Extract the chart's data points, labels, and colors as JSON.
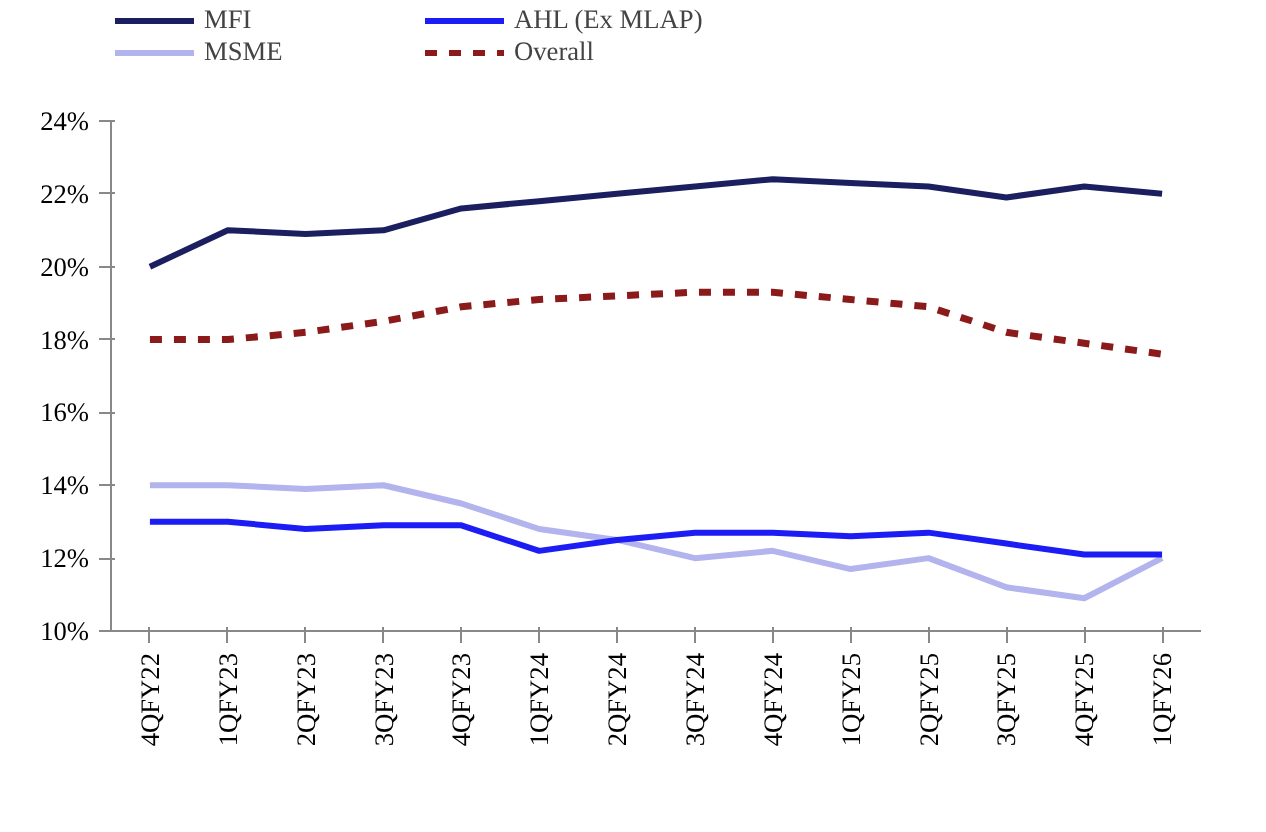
{
  "chart_data": {
    "type": "line",
    "categories": [
      "4QFY22",
      "1QFY23",
      "2QFY23",
      "3QFY23",
      "4QFY23",
      "1QFY24",
      "2QFY24",
      "3QFY24",
      "4QFY24",
      "1QFY25",
      "2QFY25",
      "3QFY25",
      "4QFY25",
      "1QFY26"
    ],
    "series": [
      {
        "name": "MFI",
        "color": "#1b1f5f",
        "line_style": "solid",
        "values": [
          20.0,
          21.0,
          20.9,
          21.0,
          21.6,
          21.8,
          22.0,
          22.2,
          22.4,
          22.3,
          22.2,
          21.9,
          22.2,
          22.0
        ]
      },
      {
        "name": "MSME",
        "color": "#b3b3ee",
        "line_style": "solid",
        "values": [
          14.0,
          14.0,
          13.9,
          14.0,
          13.5,
          12.8,
          12.5,
          12.0,
          12.2,
          11.7,
          12.0,
          11.2,
          10.9,
          12.0
        ]
      },
      {
        "name": "AHL (Ex MLAP)",
        "color": "#1c1cf5",
        "line_style": "solid",
        "values": [
          13.0,
          13.0,
          12.8,
          12.9,
          12.9,
          12.2,
          12.5,
          12.7,
          12.7,
          12.6,
          12.7,
          12.4,
          12.1,
          12.1
        ]
      },
      {
        "name": "Overall",
        "color": "#8b1a1a",
        "line_style": "dashed",
        "values": [
          18.0,
          18.0,
          18.2,
          18.5,
          18.9,
          19.1,
          19.2,
          19.3,
          19.3,
          19.1,
          18.9,
          18.2,
          17.9,
          17.6
        ]
      }
    ],
    "ylim": [
      10,
      24
    ],
    "yticks": [
      {
        "value": 10,
        "label": "10%"
      },
      {
        "value": 12,
        "label": "12%"
      },
      {
        "value": 14,
        "label": "14%"
      },
      {
        "value": 16,
        "label": "16%"
      },
      {
        "value": 18,
        "label": "18%"
      },
      {
        "value": 20,
        "label": "20%"
      },
      {
        "value": 22,
        "label": "22%"
      },
      {
        "value": 24,
        "label": "24%"
      }
    ],
    "grid": false,
    "legend": "top",
    "marker": "none"
  }
}
